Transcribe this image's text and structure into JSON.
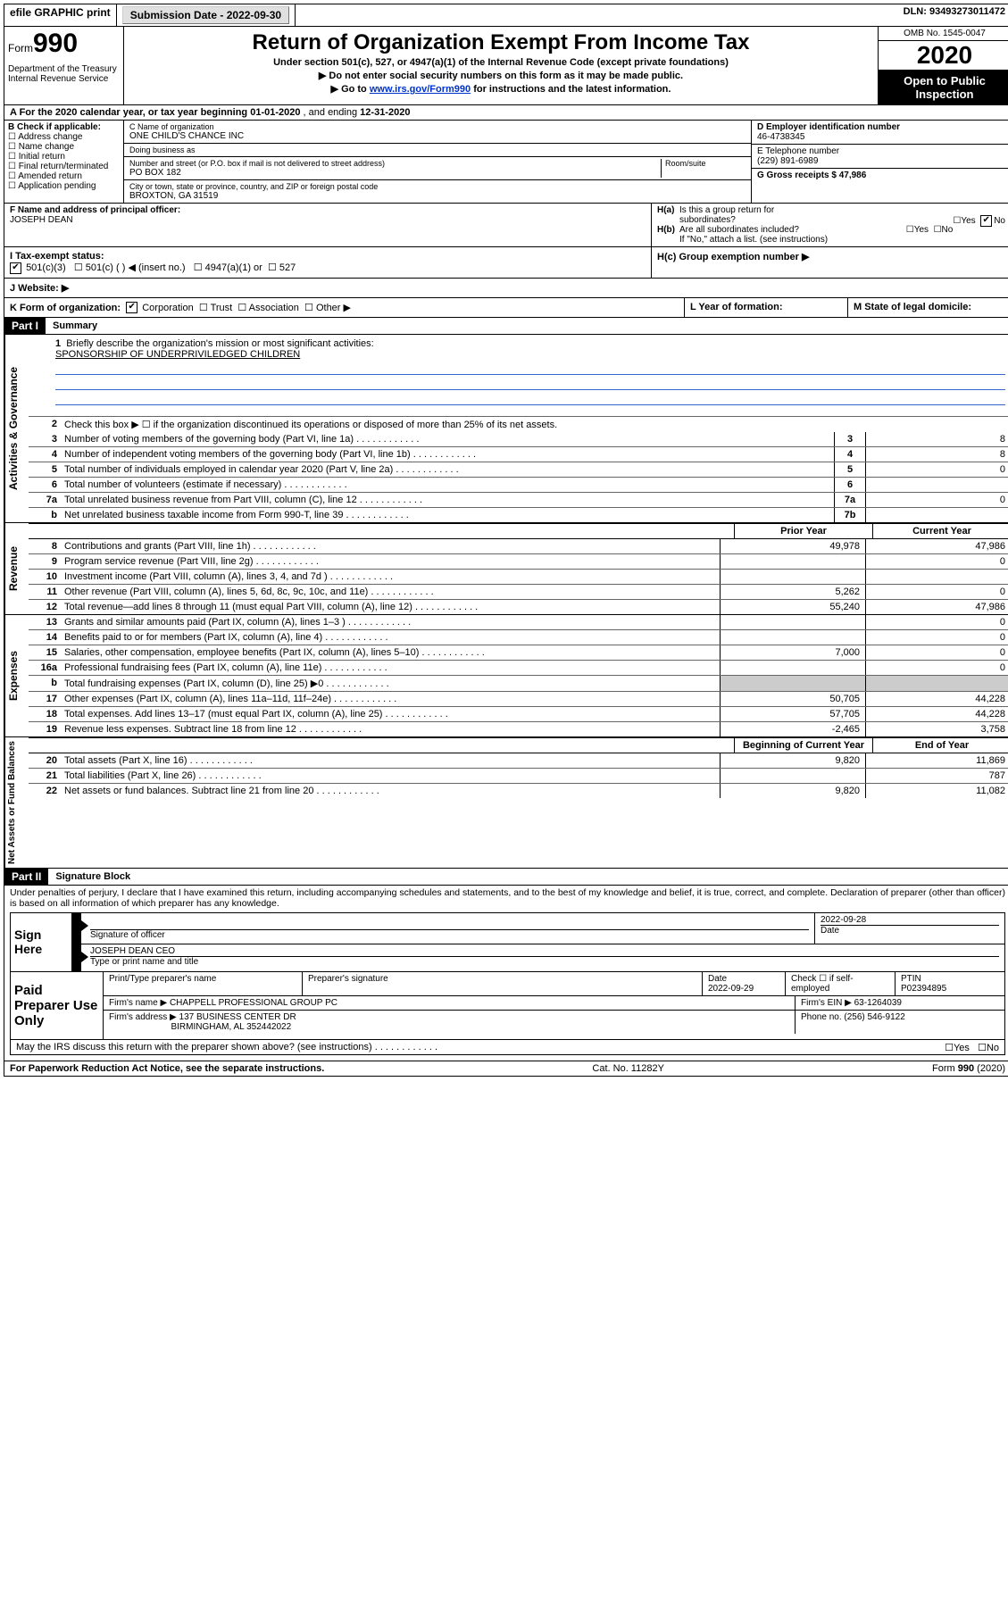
{
  "topbar": {
    "efile": "efile GRAPHIC print",
    "submission_label": "Submission Date - ",
    "submission_date": "2022-09-30",
    "dln_label": "DLN: ",
    "dln": "93493273011472"
  },
  "header": {
    "form_prefix": "Form",
    "form_number": "990",
    "dept": "Department of the Treasury\nInternal Revenue Service",
    "title": "Return of Organization Exempt From Income Tax",
    "subtitle": "Under section 501(c), 527, or 4947(a)(1) of the Internal Revenue Code (except private foundations)",
    "note1": "▶ Do not enter social security numbers on this form as it may be made public.",
    "note2_pre": "▶ Go to ",
    "note2_link": "www.irs.gov/Form990",
    "note2_post": " for instructions and the latest information.",
    "omb": "OMB No. 1545-0047",
    "year": "2020",
    "open": "Open to Public Inspection"
  },
  "period": {
    "a_label": "A For the 2020 calendar year, or tax year beginning ",
    "begin": "01-01-2020",
    "mid": " , and ending ",
    "end": "12-31-2020"
  },
  "colB": {
    "title": "B Check if applicable:",
    "opts": [
      "Address change",
      "Name change",
      "Initial return",
      "Final return/terminated",
      "Amended return",
      "Application pending"
    ]
  },
  "colC": {
    "name_label": "C Name of organization",
    "name": "ONE CHILD'S CHANCE INC",
    "dba_label": "Doing business as",
    "dba": "",
    "addr_label": "Number and street (or P.O. box if mail is not delivered to street address)",
    "room_label": "Room/suite",
    "addr": "PO BOX 182",
    "city_label": "City or town, state or province, country, and ZIP or foreign postal code",
    "city": "BROXTON, GA  31519"
  },
  "colD": {
    "d_label": "D Employer identification number",
    "ein": "46-4738345",
    "e_label": "E Telephone number",
    "phone": "(229) 891-6989",
    "g_label": "G Gross receipts $ ",
    "gross": "47,986"
  },
  "fBox": {
    "f_label": "F Name and address of principal officer:",
    "officer": "JOSEPH DEAN"
  },
  "hBox": {
    "ha": "H(a)  Is this a group return for subordinates?",
    "hb": "H(b)  Are all subordinates included?",
    "hb_note": "If \"No,\" attach a list. (see instructions)",
    "hc": "H(c)  Group exemption number ▶",
    "yes": "Yes",
    "no": "No"
  },
  "status": {
    "i_label": "I    Tax-exempt status:",
    "c3": "501(c)(3)",
    "c": "501(c) (  ) ◀ (insert no.)",
    "a1": "4947(a)(1) or",
    "s527": "527"
  },
  "website": {
    "j_label": "J   Website: ▶",
    "url": ""
  },
  "kRow": {
    "k_label": "K Form of organization:",
    "opts": [
      "Corporation",
      "Trust",
      "Association",
      "Other ▶"
    ],
    "l_label": "L Year of formation:",
    "l_val": "",
    "m_label": "M State of legal domicile:",
    "m_val": ""
  },
  "parts": {
    "p1": "Part I",
    "summary": "Summary",
    "p2": "Part II",
    "sig": "Signature Block"
  },
  "sideTabs": {
    "gov": "Activities & Governance",
    "rev": "Revenue",
    "exp": "Expenses",
    "net": "Net Assets or Fund Balances"
  },
  "summary": {
    "q1": "Briefly describe the organization's mission or most significant activities:",
    "mission": "SPONSORSHIP OF UNDERPRIVILEDGED CHILDREN",
    "q2": "Check this box ▶ ☐  if the organization discontinued its operations or disposed of more than 25% of its net assets.",
    "lines_gov": [
      {
        "n": "3",
        "d": "Number of voting members of the governing body (Part VI, line 1a)",
        "box": "3",
        "v": "8"
      },
      {
        "n": "4",
        "d": "Number of independent voting members of the governing body (Part VI, line 1b)",
        "box": "4",
        "v": "8"
      },
      {
        "n": "5",
        "d": "Total number of individuals employed in calendar year 2020 (Part V, line 2a)",
        "box": "5",
        "v": "0"
      },
      {
        "n": "6",
        "d": "Total number of volunteers (estimate if necessary)",
        "box": "6",
        "v": ""
      },
      {
        "n": "7a",
        "d": "Total unrelated business revenue from Part VIII, column (C), line 12",
        "box": "7a",
        "v": "0"
      },
      {
        "n": "b",
        "d": "Net unrelated business taxable income from Form 990-T, line 39",
        "box": "7b",
        "v": ""
      }
    ],
    "col_prior": "Prior Year",
    "col_curr": "Current Year",
    "col_begin": "Beginning of Current Year",
    "col_end": "End of Year",
    "lines_rev": [
      {
        "n": "8",
        "d": "Contributions and grants (Part VIII, line 1h)",
        "p": "49,978",
        "c": "47,986"
      },
      {
        "n": "9",
        "d": "Program service revenue (Part VIII, line 2g)",
        "p": "",
        "c": "0"
      },
      {
        "n": "10",
        "d": "Investment income (Part VIII, column (A), lines 3, 4, and 7d )",
        "p": "",
        "c": ""
      },
      {
        "n": "11",
        "d": "Other revenue (Part VIII, column (A), lines 5, 6d, 8c, 9c, 10c, and 11e)",
        "p": "5,262",
        "c": "0"
      },
      {
        "n": "12",
        "d": "Total revenue—add lines 8 through 11 (must equal Part VIII, column (A), line 12)",
        "p": "55,240",
        "c": "47,986"
      }
    ],
    "lines_exp": [
      {
        "n": "13",
        "d": "Grants and similar amounts paid (Part IX, column (A), lines 1–3 )",
        "p": "",
        "c": "0"
      },
      {
        "n": "14",
        "d": "Benefits paid to or for members (Part IX, column (A), line 4)",
        "p": "",
        "c": "0"
      },
      {
        "n": "15",
        "d": "Salaries, other compensation, employee benefits (Part IX, column (A), lines 5–10)",
        "p": "7,000",
        "c": "0"
      },
      {
        "n": "16a",
        "d": "Professional fundraising fees (Part IX, column (A), line 11e)",
        "p": "",
        "c": "0"
      },
      {
        "n": "b",
        "d": "Total fundraising expenses (Part IX, column (D), line 25) ▶0",
        "p": "shaded",
        "c": "shaded"
      },
      {
        "n": "17",
        "d": "Other expenses (Part IX, column (A), lines 11a–11d, 11f–24e)",
        "p": "50,705",
        "c": "44,228"
      },
      {
        "n": "18",
        "d": "Total expenses. Add lines 13–17 (must equal Part IX, column (A), line 25)",
        "p": "57,705",
        "c": "44,228"
      },
      {
        "n": "19",
        "d": "Revenue less expenses. Subtract line 18 from line 12",
        "p": "-2,465",
        "c": "3,758"
      }
    ],
    "lines_net": [
      {
        "n": "20",
        "d": "Total assets (Part X, line 16)",
        "p": "9,820",
        "c": "11,869"
      },
      {
        "n": "21",
        "d": "Total liabilities (Part X, line 26)",
        "p": "",
        "c": "787"
      },
      {
        "n": "22",
        "d": "Net assets or fund balances. Subtract line 21 from line 20",
        "p": "9,820",
        "c": "11,082"
      }
    ]
  },
  "sig": {
    "declaration": "Under penalties of perjury, I declare that I have examined this return, including accompanying schedules and statements, and to the best of my knowledge and belief, it is true, correct, and complete. Declaration of preparer (other than officer) is based on all information of which preparer has any knowledge.",
    "sign_here": "Sign Here",
    "sig_officer": "Signature of officer",
    "date_label": "Date",
    "sig_date": "2022-09-28",
    "name_title": "JOSEPH DEAN  CEO",
    "type_name": "Type or print name and title"
  },
  "paid": {
    "label": "Paid Preparer Use Only",
    "h_name": "Print/Type preparer's name",
    "h_sig": "Preparer's signature",
    "h_date": "Date",
    "date": "2022-09-29",
    "h_check": "Check ☐ if self-employed",
    "h_ptin": "PTIN",
    "ptin": "P02394895",
    "firm_name_label": "Firm's name      ▶ ",
    "firm_name": "CHAPPELL PROFESSIONAL GROUP PC",
    "firm_ein_label": "Firm's EIN ▶ ",
    "firm_ein": "63-1264039",
    "firm_addr_label": "Firm's address ▶ ",
    "firm_addr1": "137 BUSINESS CENTER DR",
    "firm_addr2": "BIRMINGHAM, AL  352442022",
    "phone_label": "Phone no. ",
    "phone": "(256) 546-9122",
    "discuss": "May the IRS discuss this return with the preparer shown above? (see instructions)"
  },
  "footer": {
    "left": "For Paperwork Reduction Act Notice, see the separate instructions.",
    "mid": "Cat. No. 11282Y",
    "right": "Form 990 (2020)"
  }
}
